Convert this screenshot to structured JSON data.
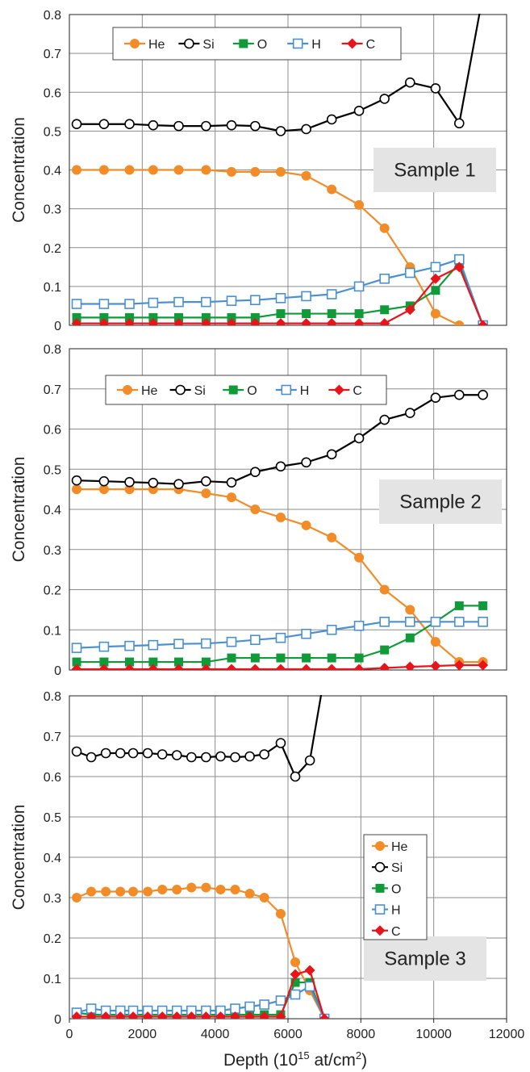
{
  "figure": {
    "xlabel": "Depth (10",
    "xlabel_sup": "15",
    "xlabel_tail": " at/cm",
    "xlabel_sup2": "2",
    "xlabel_end": ")"
  },
  "colors": {
    "He": "#f28c28",
    "Si": "#000000",
    "O": "#119a3a",
    "H": "#4a90d0",
    "C": "#e8141c",
    "label_box": "#e4e4e4"
  },
  "series_markers": {
    "He": "circle-filled",
    "Si": "circle-open",
    "O": "square-filled",
    "H": "square-open",
    "C": "diamond-filled"
  },
  "chart_data": [
    {
      "type": "line",
      "panel_label": "Sample 1",
      "ylabel": "Concentration",
      "xlim": [
        0,
        12000
      ],
      "ylim": [
        0,
        0.8
      ],
      "yticks": [
        "0",
        "0.1",
        "0.2",
        "0.3",
        "0.4",
        "0.5",
        "0.6",
        "0.7",
        "0.8"
      ],
      "grid": true,
      "legend": "top-left, horizontal",
      "x": [
        200,
        950,
        1650,
        2300,
        3000,
        3750,
        4450,
        5100,
        5800,
        6500,
        7200,
        7950,
        8650,
        9350,
        10050,
        10700,
        11350
      ],
      "series": [
        {
          "name": "He",
          "values": [
            0.4,
            0.4,
            0.4,
            0.4,
            0.4,
            0.4,
            0.395,
            0.395,
            0.395,
            0.385,
            0.35,
            0.31,
            0.25,
            0.15,
            0.03,
            0.0,
            null
          ]
        },
        {
          "name": "Si",
          "values": [
            0.518,
            0.518,
            0.518,
            0.515,
            0.513,
            0.513,
            0.515,
            0.513,
            0.5,
            0.505,
            0.53,
            0.552,
            0.583,
            0.625,
            0.61,
            0.52,
            0.85
          ]
        },
        {
          "name": "O",
          "values": [
            0.02,
            0.02,
            0.02,
            0.02,
            0.02,
            0.02,
            0.02,
            0.02,
            0.03,
            0.03,
            0.03,
            0.03,
            0.04,
            0.05,
            0.09,
            0.16,
            0.0
          ]
        },
        {
          "name": "H",
          "values": [
            0.055,
            0.055,
            0.055,
            0.058,
            0.06,
            0.06,
            0.063,
            0.065,
            0.07,
            0.075,
            0.08,
            0.1,
            0.12,
            0.135,
            0.15,
            0.17,
            0.0
          ]
        },
        {
          "name": "C",
          "values": [
            0.005,
            0.005,
            0.005,
            0.005,
            0.005,
            0.005,
            0.005,
            0.005,
            0.005,
            0.005,
            0.005,
            0.005,
            0.005,
            0.04,
            0.12,
            0.15,
            0.0
          ]
        }
      ]
    },
    {
      "type": "line",
      "panel_label": "Sample 2",
      "ylabel": "Concentration",
      "xlim": [
        0,
        12000
      ],
      "ylim": [
        0,
        0.8
      ],
      "yticks": [
        "0",
        "0.1",
        "0.2",
        "0.3",
        "0.4",
        "0.5",
        "0.6",
        "0.7",
        "0.8"
      ],
      "grid": true,
      "legend": "top-left, horizontal",
      "x": [
        200,
        950,
        1650,
        2300,
        3000,
        3750,
        4450,
        5100,
        5800,
        6500,
        7200,
        7950,
        8650,
        9350,
        10050,
        10700,
        11350
      ],
      "series": [
        {
          "name": "He",
          "values": [
            0.45,
            0.45,
            0.45,
            0.45,
            0.45,
            0.44,
            0.43,
            0.4,
            0.38,
            0.36,
            0.33,
            0.28,
            0.2,
            0.15,
            0.07,
            0.02,
            0.02
          ]
        },
        {
          "name": "Si",
          "values": [
            0.472,
            0.47,
            0.468,
            0.466,
            0.463,
            0.47,
            0.467,
            0.493,
            0.507,
            0.517,
            0.537,
            0.577,
            0.623,
            0.64,
            0.678,
            0.685,
            0.685
          ]
        },
        {
          "name": "O",
          "values": [
            0.02,
            0.02,
            0.02,
            0.02,
            0.02,
            0.02,
            0.03,
            0.03,
            0.03,
            0.03,
            0.03,
            0.03,
            0.05,
            0.08,
            0.12,
            0.16,
            0.16
          ]
        },
        {
          "name": "H",
          "values": [
            0.055,
            0.058,
            0.06,
            0.062,
            0.065,
            0.066,
            0.07,
            0.075,
            0.08,
            0.09,
            0.1,
            0.11,
            0.12,
            0.12,
            0.12,
            0.12,
            0.12
          ]
        },
        {
          "name": "C",
          "values": [
            0.002,
            0.002,
            0.002,
            0.002,
            0.002,
            0.002,
            0.002,
            0.002,
            0.002,
            0.002,
            0.002,
            0.002,
            0.005,
            0.008,
            0.01,
            0.012,
            0.012
          ]
        }
      ]
    },
    {
      "type": "line",
      "panel_label": "Sample 3",
      "ylabel": "Concentration",
      "xlabel": "Depth (10^15 at/cm^2)",
      "xlim": [
        0,
        12000
      ],
      "ylim": [
        0,
        0.8
      ],
      "xticks": [
        "0",
        "2000",
        "4000",
        "6000",
        "8000",
        "10000",
        "12000"
      ],
      "yticks": [
        "0",
        "0.1",
        "0.2",
        "0.3",
        "0.4",
        "0.5",
        "0.6",
        "0.7",
        "0.8"
      ],
      "grid": true,
      "legend": "right, vertical",
      "x": [
        200,
        600,
        1000,
        1400,
        1750,
        2150,
        2550,
        2950,
        3350,
        3750,
        4150,
        4550,
        4950,
        5350,
        5800,
        6200,
        6600,
        7000
      ],
      "series": [
        {
          "name": "He",
          "values": [
            0.3,
            0.315,
            0.315,
            0.315,
            0.315,
            0.315,
            0.32,
            0.32,
            0.325,
            0.325,
            0.32,
            0.32,
            0.31,
            0.3,
            0.26,
            0.14,
            0.07,
            0.0
          ]
        },
        {
          "name": "Si",
          "values": [
            0.662,
            0.648,
            0.658,
            0.658,
            0.658,
            0.658,
            0.655,
            0.653,
            0.648,
            0.648,
            0.65,
            0.648,
            0.65,
            0.655,
            0.683,
            0.6,
            0.64,
            0.85
          ]
        },
        {
          "name": "O",
          "values": [
            0.015,
            0.01,
            0.01,
            0.01,
            0.01,
            0.01,
            0.01,
            0.01,
            0.01,
            0.01,
            0.01,
            0.01,
            0.01,
            0.01,
            0.01,
            0.09,
            0.09,
            0.0
          ]
        },
        {
          "name": "H",
          "values": [
            0.015,
            0.025,
            0.02,
            0.02,
            0.02,
            0.02,
            0.02,
            0.02,
            0.02,
            0.02,
            0.02,
            0.025,
            0.03,
            0.035,
            0.045,
            0.06,
            0.08,
            0.0
          ]
        },
        {
          "name": "C",
          "values": [
            0.005,
            0.005,
            0.005,
            0.005,
            0.005,
            0.005,
            0.005,
            0.005,
            0.005,
            0.005,
            0.005,
            0.005,
            0.005,
            0.005,
            0.005,
            0.11,
            0.12,
            0.0
          ]
        }
      ]
    }
  ]
}
